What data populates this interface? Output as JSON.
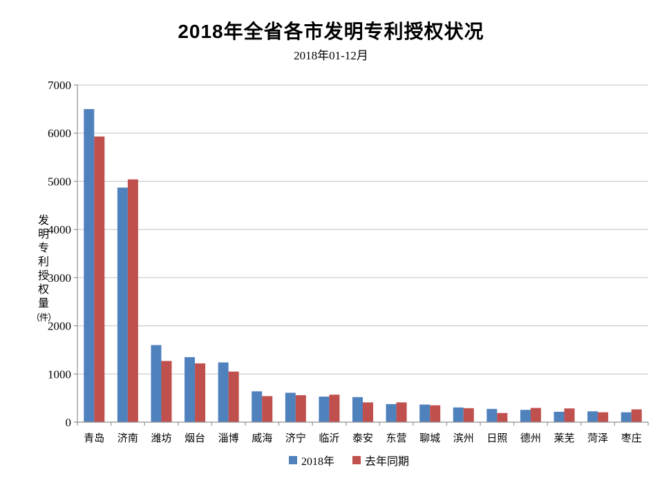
{
  "title": "2018年全省各市发明专利授权状况",
  "subtitle": "2018年01-12月",
  "chart_data": {
    "type": "bar",
    "title": "2018年全省各市发明专利授权状况",
    "subtitle": "2018年01-12月",
    "categories": [
      "青岛",
      "济南",
      "潍坊",
      "烟台",
      "淄博",
      "威海",
      "济宁",
      "临沂",
      "泰安",
      "东营",
      "聊城",
      "滨州",
      "日照",
      "德州",
      "莱芜",
      "菏泽",
      "枣庄"
    ],
    "series": [
      {
        "name": "2018年",
        "color": "#4F81BD",
        "values": [
          6500,
          4870,
          1600,
          1350,
          1240,
          640,
          610,
          530,
          520,
          375,
          365,
          305,
          275,
          255,
          215,
          225,
          205
        ]
      },
      {
        "name": "去年同期",
        "color": "#C0504D",
        "values": [
          5930,
          5040,
          1270,
          1220,
          1050,
          540,
          560,
          570,
          410,
          410,
          350,
          290,
          190,
          295,
          285,
          205,
          265
        ]
      }
    ],
    "xlabel": "",
    "ylabel": "发明专利授权量（件）",
    "ylim": [
      0,
      7000
    ],
    "ytick_interval": 1000,
    "grid": true,
    "legend_position": "bottom",
    "grid_color": "#C0C0C0",
    "axis_color": "#8F8F8F"
  }
}
